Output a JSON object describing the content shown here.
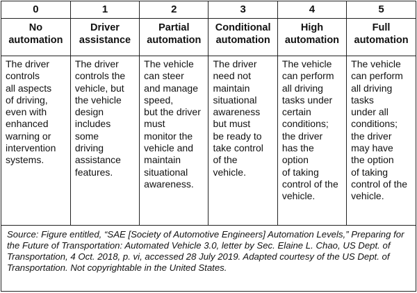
{
  "levels": [
    {
      "number": "0",
      "name": "No\nautomation",
      "description": "The driver\ncontrols\nall aspects\nof driving,\neven with\nenhanced\nwarning or\nintervention\nsystems."
    },
    {
      "number": "1",
      "name": "Driver\nassistance",
      "description": "The driver\ncontrols the\nvehicle, but\nthe vehicle\ndesign\nincludes\nsome\ndriving\nassistance\nfeatures."
    },
    {
      "number": "2",
      "name": "Partial\nautomation",
      "description": "The vehicle\ncan steer\nand manage\nspeed,\nbut the driver must\nmonitor the\nvehicle and\nmaintain\nsituational\nawareness."
    },
    {
      "number": "3",
      "name": "Conditional\nautomation",
      "description": "The driver\nneed not\nmaintain\nsituational\nawareness\nbut must\nbe ready to\ntake control\nof the\nvehicle."
    },
    {
      "number": "4",
      "name": "High\nautomation",
      "description": "The vehicle\ncan perform\nall driving\ntasks under\ncertain\nconditions;\nthe driver\nhas the\noption\nof taking\ncontrol of the vehicle."
    },
    {
      "number": "5",
      "name": "Full\nautomation",
      "description": "The vehicle\ncan perform\nall driving\ntasks\nunder all\nconditions;\nthe driver\nmay have\nthe option\nof taking\ncontrol of the vehicle."
    }
  ],
  "source": "Source: Figure entitled, “SAE [Society of Automotive Engineers] Automation Levels,” Preparing for the Future of Transportation: Automated Vehicle 3.0, letter by Sec. Elaine L. Chao, US Dept. of Transportation, 4 Oct. 2018, p. vi, accessed 28 July 2019. Adapted courtesy of the US Dept. of Transportation. Not copyrightable in the United States."
}
